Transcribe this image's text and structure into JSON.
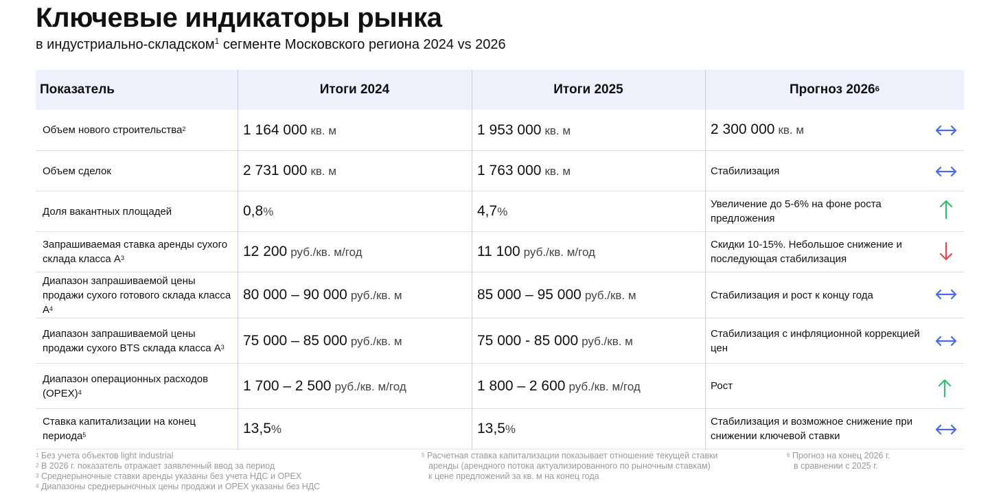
{
  "title": "Ключевые индикаторы рынка",
  "subtitle": {
    "before": "в индустриально-складском",
    "note": "1",
    "after": "сегменте Московского региона 2024 vs 2026"
  },
  "table": {
    "header": [
      {
        "text": "Показатель"
      },
      {
        "text": "Итоги 2024"
      },
      {
        "text": "Итоги 2025"
      },
      {
        "text": "Прогноз 2026",
        "note": "6"
      }
    ],
    "rows": [
      {
        "label": "Объем нового строительства",
        "note": "2",
        "y2024": {
          "value": "1 164 000",
          "unit": "кв. м"
        },
        "y2025": {
          "value": "1 953 000",
          "unit": "кв. м"
        },
        "forecast": {
          "value": "2 300 000",
          "unit": "кв. м"
        }
      },
      {
        "label": "Объем сделок",
        "y2024": {
          "value": "2 731 000",
          "unit": "кв. м"
        },
        "y2025": {
          "value": "1 763 000",
          "unit": "кв. м"
        },
        "forecast": "Стабилизация"
      },
      {
        "label": "Доля вакантных площадей",
        "y2024": {
          "value": "0,8",
          "unit": "%"
        },
        "y2025": {
          "value": "4,7",
          "unit": "%"
        },
        "forecast": "Увеличение до 5-6% на фоне роста предложения"
      },
      {
        "label": "Запрашиваемая ставка аренды сухого склада класса А",
        "note": "3",
        "y2024": {
          "value": "12 200",
          "unit": "руб./кв. м/год"
        },
        "y2025": {
          "value": "11 100",
          "unit": "руб./кв. м/год"
        },
        "forecast": "Скидки 10-15%. Небольшое снижение и последующая стабилизация"
      },
      {
        "label": "Диапазон запрашиваемой цены продажи сухого готового склада класса А",
        "note": "4",
        "y2024": {
          "value": "80 000 – 90 000",
          "unit": "руб./кв. м"
        },
        "y2025": {
          "value": "85 000 – 95 000",
          "unit": "руб./кв. м"
        },
        "forecast": "Стабилизация и рост к концу года"
      },
      {
        "label": "Диапазон запрашиваемой цены продажи сухого BTS склада класса А",
        "note": "3",
        "y2024": {
          "value": "75 000 – 85 000",
          "unit": "руб./кв. м"
        },
        "y2025": {
          "value": "75 000 - 85 000",
          "unit": "руб./кв. м"
        },
        "forecast": "Стабилизация с инфляционной коррекцией цен"
      },
      {
        "label": "Диапазон операционных расходов (OPEX)",
        "note": "4",
        "y2024": {
          "value": "1 700 – 2 500",
          "unit": "руб./кв. м/год"
        },
        "y2025": {
          "value": "1 800 – 2 600",
          "unit": "руб./кв. м/год"
        },
        "forecast": "Рост"
      },
      {
        "label": "Ставка капитализации на конец периода",
        "note": "5",
        "y2024": {
          "value": "13,5",
          "unit": "%"
        },
        "y2025": {
          "value": "13,5",
          "unit": "%"
        },
        "forecast": "Стабилизация и возможное снижение при снижении ключевой ставки"
      }
    ]
  },
  "footnotes": [
    [
      {
        "mark": "1",
        "lines": [
          "Без учета объектов light industrial"
        ]
      },
      {
        "mark": "2",
        "lines": [
          "В 2026 г. показатель отражает заявленный ввод за период"
        ]
      },
      {
        "mark": "3",
        "lines": [
          "Среднерыночные ставки аренды указаны без учета НДС и OPEX"
        ]
      },
      {
        "mark": "4",
        "lines": [
          "Диапазоны среднерыночных цены продажи и OPEX указаны без НДС"
        ]
      }
    ],
    [
      {
        "mark": "5",
        "lines": [
          "Расчетная ставка капитализации показывает отношение текущей ставки",
          "аренды (арендного потока актуализированного по рыночным ставкам)",
          "к цене предложений за кв. м на конец года"
        ]
      }
    ],
    [
      {
        "mark": "6",
        "lines": [
          "Прогноз на конец 2026 г.",
          "в сравнении с 2025 г."
        ]
      }
    ]
  ]
}
